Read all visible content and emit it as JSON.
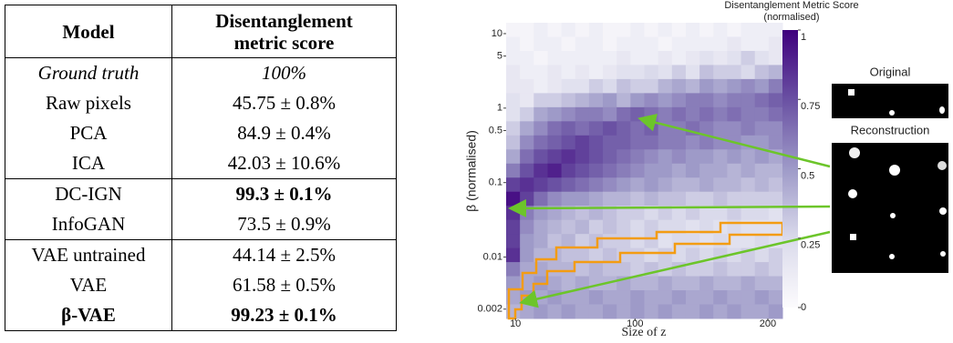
{
  "table": {
    "header": {
      "model": "Model",
      "score": "Disentanglement metric score"
    },
    "groups": [
      {
        "rows": [
          {
            "model": "Ground truth",
            "score": "100%"
          },
          {
            "model": "Raw pixels",
            "score": "45.75 ± 0.8%"
          },
          {
            "model": "PCA",
            "score": "84.9 ± 0.4%"
          },
          {
            "model": "ICA",
            "score": "42.03 ± 10.6%"
          }
        ]
      },
      {
        "rows": [
          {
            "model": "DC-IGN",
            "score": "99.3 ± 0.1%"
          },
          {
            "model": "InfoGAN",
            "score": "73.5 ± 0.9%"
          }
        ]
      },
      {
        "rows": [
          {
            "model": "VAE untrained",
            "score": "44.14 ± 2.5%"
          },
          {
            "model": "VAE",
            "score": "61.58 ± 0.5%"
          },
          {
            "model": "β-VAE",
            "score": "99.23 ± 0.1%"
          }
        ]
      }
    ]
  },
  "chart_data": {
    "type": "heatmap",
    "title": "Disentanglement Metric Score",
    "subtitle": "(normalised)",
    "xlabel": "Size of z",
    "ylabel": "β (normalised)",
    "xlim": [
      3,
      211
    ],
    "xticks": [
      10,
      100,
      200
    ],
    "ylim": [
      0.0015,
      14
    ],
    "log_y": true,
    "yticks": [
      10,
      5,
      1,
      0.5,
      0.1,
      0.01,
      0.002
    ],
    "clim": [
      0,
      1
    ],
    "cticks": [
      0,
      0.25,
      0.5,
      0.75,
      1
    ],
    "colors": [
      "#fcfbfd",
      "#dadaeb",
      "#9e9ac8",
      "#6a51a3",
      "#3f007d"
    ],
    "z": [
      [
        0.05,
        0.05,
        0.1,
        0.05,
        0.1,
        0.05,
        0.1,
        0.05,
        0.05,
        0.1,
        0.05,
        0.1,
        0.05,
        0.1,
        0.05,
        0.1,
        0.05,
        0.1,
        0.1,
        0.1
      ],
      [
        0.1,
        0.05,
        0.1,
        0.1,
        0.05,
        0.1,
        0.1,
        0.05,
        0.1,
        0.1,
        0.1,
        0.05,
        0.1,
        0.1,
        0.1,
        0.1,
        0.15,
        0.1,
        0.1,
        0.15
      ],
      [
        0.1,
        0.1,
        0.05,
        0.1,
        0.1,
        0.1,
        0.1,
        0.1,
        0.15,
        0.1,
        0.1,
        0.15,
        0.1,
        0.15,
        0.2,
        0.15,
        0.2,
        0.3,
        0.2,
        0.15
      ],
      [
        0.15,
        0.1,
        0.1,
        0.15,
        0.1,
        0.15,
        0.1,
        0.15,
        0.2,
        0.2,
        0.25,
        0.2,
        0.3,
        0.2,
        0.35,
        0.3,
        0.3,
        0.25,
        0.35,
        0.4
      ],
      [
        0.15,
        0.15,
        0.1,
        0.15,
        0.2,
        0.2,
        0.3,
        0.25,
        0.35,
        0.3,
        0.3,
        0.4,
        0.45,
        0.4,
        0.5,
        0.45,
        0.5,
        0.55,
        0.5,
        0.6
      ],
      [
        0.2,
        0.15,
        0.3,
        0.3,
        0.35,
        0.4,
        0.45,
        0.5,
        0.4,
        0.5,
        0.55,
        0.5,
        0.55,
        0.6,
        0.6,
        0.55,
        0.6,
        0.6,
        0.65,
        0.7
      ],
      [
        0.2,
        0.3,
        0.45,
        0.5,
        0.55,
        0.6,
        0.6,
        0.55,
        0.65,
        0.7,
        0.65,
        0.6,
        0.65,
        0.6,
        0.65,
        0.6,
        0.65,
        0.6,
        0.6,
        0.65
      ],
      [
        0.3,
        0.45,
        0.55,
        0.65,
        0.7,
        0.65,
        0.7,
        0.75,
        0.7,
        0.65,
        0.7,
        0.6,
        0.6,
        0.65,
        0.6,
        0.55,
        0.55,
        0.6,
        0.55,
        0.55
      ],
      [
        0.35,
        0.55,
        0.65,
        0.7,
        0.75,
        0.8,
        0.75,
        0.7,
        0.7,
        0.65,
        0.65,
        0.6,
        0.6,
        0.55,
        0.6,
        0.55,
        0.55,
        0.5,
        0.5,
        0.55
      ],
      [
        0.45,
        0.65,
        0.75,
        0.8,
        0.85,
        0.8,
        0.75,
        0.7,
        0.65,
        0.6,
        0.55,
        0.5,
        0.55,
        0.5,
        0.5,
        0.45,
        0.5,
        0.45,
        0.5,
        0.45
      ],
      [
        0.6,
        0.75,
        0.85,
        0.9,
        0.8,
        0.75,
        0.7,
        0.65,
        0.6,
        0.55,
        0.5,
        0.5,
        0.45,
        0.5,
        0.45,
        0.45,
        0.4,
        0.45,
        0.4,
        0.4
      ],
      [
        0.8,
        0.85,
        0.8,
        0.75,
        0.7,
        0.65,
        0.6,
        0.55,
        0.5,
        0.45,
        0.5,
        0.45,
        0.4,
        0.4,
        0.45,
        0.4,
        0.4,
        0.35,
        0.4,
        0.35
      ],
      [
        0.95,
        0.8,
        0.65,
        0.55,
        0.5,
        0.5,
        0.45,
        0.4,
        0.4,
        0.35,
        0.4,
        0.35,
        0.35,
        0.3,
        0.3,
        0.35,
        0.3,
        0.3,
        0.3,
        0.3
      ],
      [
        0.85,
        0.6,
        0.5,
        0.45,
        0.4,
        0.35,
        0.4,
        0.35,
        0.3,
        0.3,
        0.25,
        0.3,
        0.25,
        0.3,
        0.25,
        0.25,
        0.3,
        0.25,
        0.25,
        0.2
      ],
      [
        0.8,
        0.55,
        0.45,
        0.4,
        0.35,
        0.4,
        0.3,
        0.35,
        0.3,
        0.25,
        0.3,
        0.25,
        0.25,
        0.2,
        0.25,
        0.2,
        0.25,
        0.2,
        0.2,
        0.2
      ],
      [
        0.8,
        0.5,
        0.45,
        0.35,
        0.4,
        0.3,
        0.35,
        0.3,
        0.3,
        0.25,
        0.3,
        0.2,
        0.25,
        0.25,
        0.2,
        0.25,
        0.2,
        0.2,
        0.25,
        0.2
      ],
      [
        0.85,
        0.5,
        0.4,
        0.4,
        0.35,
        0.35,
        0.3,
        0.35,
        0.3,
        0.3,
        0.25,
        0.3,
        0.25,
        0.3,
        0.25,
        0.3,
        0.25,
        0.3,
        0.25,
        0.3
      ],
      [
        0.6,
        0.45,
        0.45,
        0.4,
        0.4,
        0.35,
        0.4,
        0.35,
        0.35,
        0.3,
        0.35,
        0.3,
        0.35,
        0.3,
        0.3,
        0.35,
        0.3,
        0.3,
        0.35,
        0.3
      ],
      [
        0.5,
        0.45,
        0.5,
        0.45,
        0.4,
        0.45,
        0.4,
        0.4,
        0.45,
        0.4,
        0.4,
        0.45,
        0.4,
        0.4,
        0.45,
        0.4,
        0.4,
        0.45,
        0.4,
        0.4
      ],
      [
        0.45,
        0.5,
        0.45,
        0.5,
        0.45,
        0.45,
        0.5,
        0.45,
        0.45,
        0.5,
        0.45,
        0.45,
        0.5,
        0.45,
        0.45,
        0.5,
        0.45,
        0.45,
        0.5,
        0.45
      ],
      [
        0.4,
        0.45,
        0.5,
        0.45,
        0.5,
        0.45,
        0.45,
        0.5,
        0.45,
        0.5,
        0.45,
        0.5,
        0.45,
        0.45,
        0.5,
        0.45,
        0.5,
        0.45,
        0.45,
        0.5
      ]
    ]
  },
  "images": {
    "original": "Original",
    "reconstruction": "Reconstruction"
  }
}
